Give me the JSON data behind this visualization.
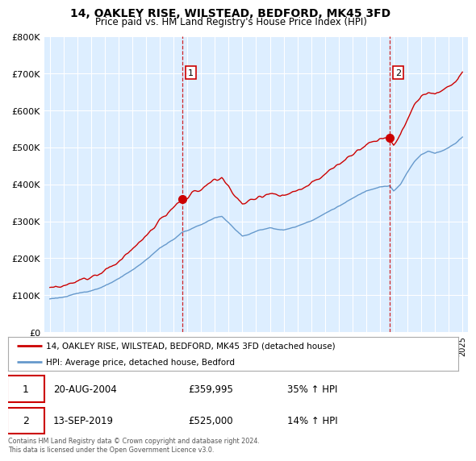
{
  "title": "14, OAKLEY RISE, WILSTEAD, BEDFORD, MK45 3FD",
  "subtitle": "Price paid vs. HM Land Registry's House Price Index (HPI)",
  "legend_line1": "14, OAKLEY RISE, WILSTEAD, BEDFORD, MK45 3FD (detached house)",
  "legend_line2": "HPI: Average price, detached house, Bedford",
  "transaction1_date": "20-AUG-2004",
  "transaction1_price": "£359,995",
  "transaction1_hpi": "35% ↑ HPI",
  "transaction2_date": "13-SEP-2019",
  "transaction2_price": "£525,000",
  "transaction2_hpi": "14% ↑ HPI",
  "footer": "Contains HM Land Registry data © Crown copyright and database right 2024.\nThis data is licensed under the Open Government Licence v3.0.",
  "red_color": "#cc0000",
  "blue_color": "#6699cc",
  "plot_bg_color": "#ddeeff",
  "grid_color": "#ffffff",
  "ylim": [
    0,
    800000
  ],
  "yticks": [
    0,
    100000,
    200000,
    300000,
    400000,
    500000,
    600000,
    700000,
    800000
  ],
  "ytick_labels": [
    "£0",
    "£100K",
    "£200K",
    "£300K",
    "£400K",
    "£500K",
    "£600K",
    "£700K",
    "£800K"
  ],
  "transaction1_year": 2004.64,
  "transaction1_value": 359995,
  "transaction2_year": 2019.71,
  "transaction2_value": 525000
}
